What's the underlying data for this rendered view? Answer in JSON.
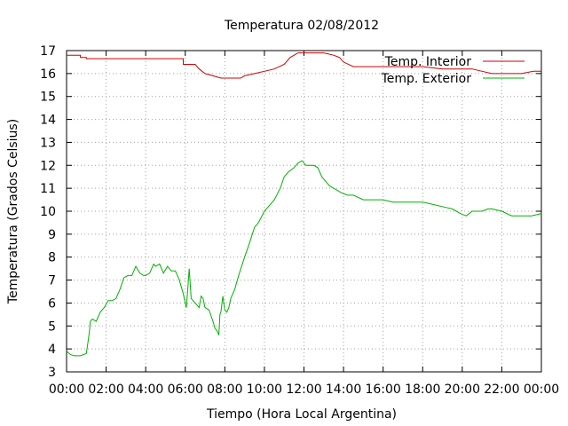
{
  "chart_data": {
    "type": "line",
    "title": "Temperatura 02/08/2012",
    "xlabel": "Tiempo (Hora Local Argentina)",
    "ylabel": "Temperatura (Grados Celsius)",
    "xlim": [
      0,
      24
    ],
    "ylim": [
      3,
      17
    ],
    "grid": true,
    "legend_position": "top-right",
    "x_tick_labels": [
      "00:00",
      "02:00",
      "04:00",
      "06:00",
      "08:00",
      "10:00",
      "12:00",
      "14:00",
      "16:00",
      "18:00",
      "20:00",
      "22:00",
      "00:00"
    ],
    "y_tick_labels": [
      "3",
      "4",
      "5",
      "6",
      "7",
      "8",
      "9",
      "10",
      "11",
      "12",
      "13",
      "14",
      "15",
      "16",
      "17"
    ],
    "series": [
      {
        "name": "Temp. Interior",
        "color": "#cc0000",
        "x": [
          0,
          0.7,
          0.7,
          1.0,
          1.0,
          2.0,
          3.0,
          4.0,
          5.0,
          5.9,
          5.9,
          6.5,
          6.7,
          7.0,
          7.4,
          7.8,
          8.3,
          8.8,
          9.0,
          9.5,
          10.0,
          10.5,
          11.0,
          11.3,
          11.7,
          12.5,
          13.0,
          13.5,
          13.8,
          14.0,
          14.5,
          15.0,
          16.0,
          17.0,
          18.0,
          19.0,
          20.0,
          20.5,
          21.0,
          21.5,
          22.0,
          23.0,
          23.6,
          24.0
        ],
        "values": [
          16.8,
          16.8,
          16.7,
          16.7,
          16.65,
          16.65,
          16.65,
          16.65,
          16.65,
          16.65,
          16.4,
          16.4,
          16.2,
          16.0,
          15.9,
          15.8,
          15.8,
          15.8,
          15.9,
          16.0,
          16.1,
          16.2,
          16.4,
          16.7,
          16.9,
          16.9,
          16.9,
          16.8,
          16.7,
          16.5,
          16.3,
          16.3,
          16.3,
          16.3,
          16.3,
          16.2,
          16.2,
          16.2,
          16.1,
          16.0,
          16.0,
          16.0,
          16.1,
          16.1
        ],
        "title_note": ""
      },
      {
        "name": "Temp. Exterior",
        "color": "#00b000",
        "x": [
          0,
          0.2,
          0.4,
          0.7,
          1.0,
          1.05,
          1.15,
          1.2,
          1.3,
          1.5,
          1.7,
          1.9,
          2.1,
          2.3,
          2.5,
          2.7,
          2.9,
          3.1,
          3.3,
          3.5,
          3.7,
          3.9,
          4.0,
          4.2,
          4.4,
          4.5,
          4.7,
          4.9,
          5.1,
          5.3,
          5.5,
          5.7,
          5.9,
          6.0,
          6.05,
          6.1,
          6.2,
          6.3,
          6.5,
          6.7,
          6.8,
          6.9,
          7.0,
          7.2,
          7.4,
          7.5,
          7.6,
          7.7,
          7.75,
          7.8,
          7.9,
          8.0,
          8.1,
          8.2,
          8.3,
          8.5,
          8.7,
          9.0,
          9.2,
          9.5,
          9.7,
          10.0,
          10.2,
          10.5,
          10.8,
          11.0,
          11.2,
          11.5,
          11.7,
          11.9,
          12.1,
          12.3,
          12.5,
          12.7,
          12.9,
          13.1,
          13.3,
          13.5,
          13.7,
          13.9,
          14.2,
          14.5,
          15.0,
          15.5,
          16.0,
          16.5,
          17.0,
          17.5,
          18.0,
          18.5,
          19.0,
          19.5,
          19.9,
          20.2,
          20.5,
          21.0,
          21.3,
          21.5,
          22.0,
          22.5,
          23.0,
          23.5,
          24.0
        ],
        "values": [
          3.9,
          3.75,
          3.7,
          3.7,
          3.8,
          4.1,
          4.7,
          5.2,
          5.3,
          5.2,
          5.6,
          5.8,
          6.1,
          6.1,
          6.2,
          6.6,
          7.1,
          7.2,
          7.2,
          7.6,
          7.3,
          7.2,
          7.2,
          7.3,
          7.7,
          7.6,
          7.7,
          7.3,
          7.6,
          7.4,
          7.4,
          7.0,
          6.4,
          6.0,
          5.8,
          6.3,
          7.5,
          6.2,
          6.0,
          5.8,
          6.3,
          6.2,
          5.8,
          5.7,
          5.2,
          4.9,
          4.8,
          4.6,
          5.5,
          5.6,
          6.3,
          5.7,
          5.6,
          5.8,
          6.2,
          6.6,
          7.2,
          8.0,
          8.5,
          9.3,
          9.5,
          10.0,
          10.2,
          10.5,
          11.0,
          11.5,
          11.7,
          11.9,
          12.1,
          12.2,
          12.0,
          12.0,
          12.0,
          11.9,
          11.5,
          11.3,
          11.1,
          11.0,
          10.9,
          10.8,
          10.7,
          10.7,
          10.5,
          10.5,
          10.5,
          10.4,
          10.4,
          10.4,
          10.4,
          10.3,
          10.2,
          10.1,
          9.9,
          9.8,
          10.0,
          10.0,
          10.1,
          10.1,
          10.0,
          9.8,
          9.8,
          9.8,
          9.9
        ]
      }
    ]
  }
}
